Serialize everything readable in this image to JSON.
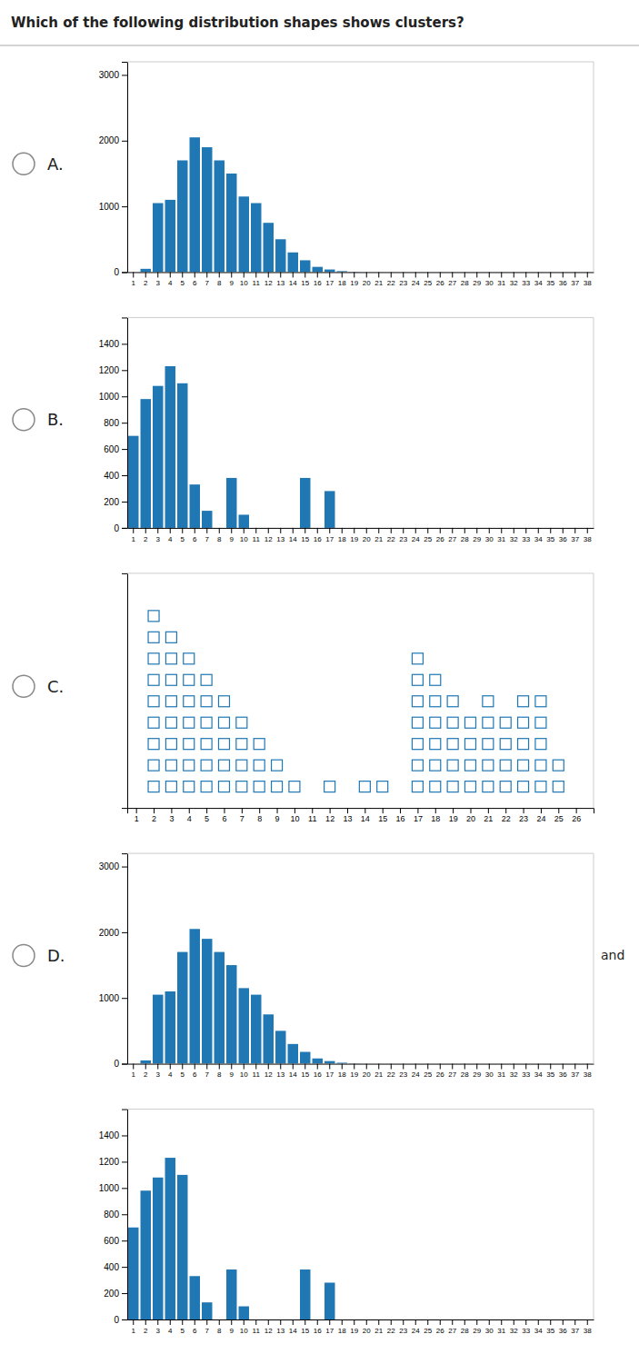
{
  "title": "Which of the following distribution shapes shows clusters?",
  "chart_data": [
    {
      "type": "bar",
      "title": "A.",
      "categories": [
        "1",
        "2",
        "3",
        "4",
        "5",
        "6",
        "7",
        "8",
        "9",
        "10",
        "11",
        "12",
        "13",
        "14",
        "15",
        "16",
        "17",
        "18",
        "19",
        "20",
        "21",
        "22",
        "23",
        "24",
        "25",
        "26",
        "27",
        "28",
        "29",
        "30",
        "31",
        "32",
        "33",
        "34",
        "35",
        "36",
        "37",
        "38"
      ],
      "values": [
        0,
        50,
        1050,
        1100,
        1700,
        2050,
        1900,
        1700,
        1500,
        1150,
        1050,
        750,
        500,
        300,
        180,
        80,
        40,
        15,
        5,
        0,
        0,
        0,
        0,
        0,
        0,
        0,
        0,
        0,
        0,
        0,
        0,
        0,
        0,
        0,
        0,
        0,
        0,
        0
      ],
      "ylim": [
        0,
        3200
      ],
      "yticks": [
        0,
        1000,
        2000,
        3000
      ],
      "grid": false
    },
    {
      "type": "bar",
      "title": "B.",
      "categories": [
        "1",
        "2",
        "3",
        "4",
        "5",
        "6",
        "7",
        "8",
        "9",
        "10",
        "11",
        "12",
        "13",
        "14",
        "15",
        "16",
        "17",
        "18",
        "19",
        "20",
        "21",
        "22",
        "23",
        "24",
        "25",
        "26",
        "27",
        "28",
        "29",
        "30",
        "31",
        "32",
        "33",
        "34",
        "35",
        "36",
        "37",
        "38"
      ],
      "values": [
        700,
        980,
        1080,
        1230,
        1100,
        330,
        130,
        0,
        380,
        100,
        0,
        0,
        0,
        0,
        380,
        0,
        280,
        0,
        0,
        0,
        0,
        0,
        0,
        0,
        0,
        0,
        0,
        0,
        0,
        0,
        0,
        0,
        0,
        0,
        0,
        0,
        0,
        0
      ],
      "ylim": [
        0,
        1600
      ],
      "yticks": [
        0,
        200,
        400,
        600,
        800,
        1000,
        1200,
        1400
      ],
      "grid": false
    },
    {
      "type": "scatter",
      "title": "C.",
      "series": [
        {
          "x": [
            2,
            2,
            2,
            2,
            2,
            2,
            2,
            2,
            2,
            3,
            3,
            3,
            3,
            3,
            3,
            3,
            3,
            4,
            4,
            4,
            4,
            4,
            4,
            4,
            5,
            5,
            5,
            5,
            5,
            5,
            6,
            6,
            6,
            6,
            6,
            7,
            7,
            7,
            7,
            8,
            8,
            8,
            9,
            9
          ],
          "values": [
            1,
            2,
            3,
            4,
            5,
            6,
            7,
            8,
            9,
            1,
            2,
            3,
            4,
            5,
            6,
            7,
            8,
            1,
            2,
            3,
            4,
            5,
            6,
            7,
            1,
            2,
            3,
            4,
            5,
            6,
            1,
            2,
            3,
            4,
            5,
            1,
            2,
            3,
            4,
            1,
            2,
            3,
            1,
            2
          ],
          "marker": "square"
        },
        {
          "x": [
            17,
            17,
            17,
            17,
            17,
            17,
            17,
            18,
            18,
            18,
            18,
            18,
            18,
            19,
            19,
            19,
            19,
            19,
            20,
            20,
            20,
            20,
            21,
            21,
            21,
            21,
            21,
            22,
            22,
            22,
            22,
            23,
            23,
            23,
            23,
            23,
            24,
            24,
            24,
            24,
            24,
            25,
            25
          ],
          "values": [
            1,
            2,
            3,
            4,
            5,
            6,
            7,
            1,
            2,
            3,
            4,
            5,
            6,
            1,
            2,
            3,
            4,
            5,
            1,
            2,
            3,
            4,
            1,
            2,
            3,
            4,
            5,
            1,
            2,
            3,
            4,
            1,
            2,
            3,
            4,
            5,
            1,
            2,
            3,
            4,
            5,
            1,
            2
          ],
          "marker": "square"
        },
        {
          "x": [
            10,
            12,
            14,
            15
          ],
          "values": [
            1,
            1,
            1,
            1
          ],
          "marker": "square"
        }
      ],
      "xlim": [
        0.5,
        27
      ],
      "xticks": [
        1,
        2,
        3,
        4,
        5,
        6,
        7,
        8,
        9,
        10,
        11,
        12,
        13,
        14,
        15,
        16,
        17,
        18,
        19,
        20,
        21,
        22,
        23,
        24,
        25,
        26
      ],
      "ylim": [
        0,
        11
      ],
      "yticks": [],
      "tick_labels": "x",
      "grid": false
    },
    {
      "type": "bar",
      "title": "D.",
      "annotations": [
        "and"
      ],
      "categories": [
        "1",
        "2",
        "3",
        "4",
        "5",
        "6",
        "7",
        "8",
        "9",
        "10",
        "11",
        "12",
        "13",
        "14",
        "15",
        "16",
        "17",
        "18",
        "19",
        "20",
        "21",
        "22",
        "23",
        "24",
        "25",
        "26",
        "27",
        "28",
        "29",
        "30",
        "31",
        "32",
        "33",
        "34",
        "35",
        "36",
        "37",
        "38"
      ],
      "values": [
        0,
        50,
        1050,
        1100,
        1700,
        2050,
        1900,
        1700,
        1500,
        1150,
        1050,
        750,
        500,
        300,
        180,
        80,
        40,
        15,
        5,
        0,
        0,
        0,
        0,
        0,
        0,
        0,
        0,
        0,
        0,
        0,
        0,
        0,
        0,
        0,
        0,
        0,
        0,
        0
      ],
      "ylim": [
        0,
        3200
      ],
      "yticks": [
        0,
        1000,
        2000,
        3000
      ],
      "grid": false
    },
    {
      "type": "bar",
      "categories": [
        "1",
        "2",
        "3",
        "4",
        "5",
        "6",
        "7",
        "8",
        "9",
        "10",
        "11",
        "12",
        "13",
        "14",
        "15",
        "16",
        "17",
        "18",
        "19",
        "20",
        "21",
        "22",
        "23",
        "24",
        "25",
        "26",
        "27",
        "28",
        "29",
        "30",
        "31",
        "32",
        "33",
        "34",
        "35",
        "36",
        "37",
        "38"
      ],
      "values": [
        700,
        980,
        1080,
        1230,
        1100,
        330,
        130,
        0,
        380,
        100,
        0,
        0,
        0,
        0,
        380,
        0,
        280,
        0,
        0,
        0,
        0,
        0,
        0,
        0,
        0,
        0,
        0,
        0,
        0,
        0,
        0,
        0,
        0,
        0,
        0,
        0,
        0,
        0
      ],
      "ylim": [
        0,
        1600
      ],
      "yticks": [
        0,
        200,
        400,
        600,
        800,
        1000,
        1200,
        1400
      ],
      "grid": false
    }
  ]
}
